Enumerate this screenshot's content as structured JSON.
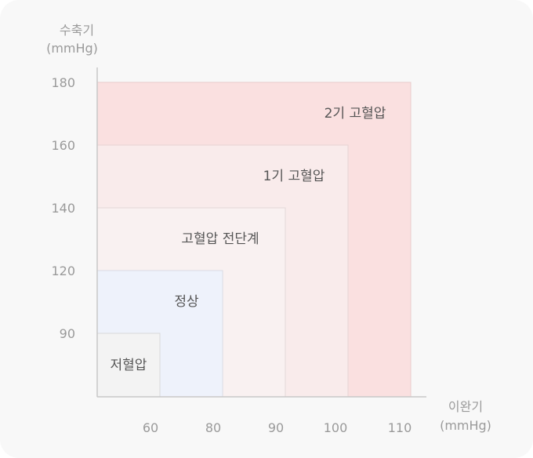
{
  "chart_data": {
    "type": "nested-rectangles",
    "ylabel": "수축기",
    "yunit": "(mmHg)",
    "xlabel": "이완기",
    "xunit": "(mmHg)",
    "y_ticks": [
      "180",
      "160",
      "140",
      "120",
      "90"
    ],
    "x_ticks": [
      "60",
      "80",
      "90",
      "100",
      "110"
    ],
    "zones": [
      {
        "label": "2기 고혈압",
        "systolic": "180",
        "diastolic": "110",
        "color": "#fae0e0"
      },
      {
        "label": "1기 고혈압",
        "systolic": "160",
        "diastolic": "100",
        "color": "#f9ebeb"
      },
      {
        "label": "고혈압 전단계",
        "systolic": "140",
        "diastolic": "90",
        "color": "#f9f1f1"
      },
      {
        "label": "정상",
        "systolic": "120",
        "diastolic": "80",
        "color": "#eef2fb"
      },
      {
        "label": "저혈압",
        "systolic": "90",
        "diastolic": "60",
        "color": "#f3f3f3"
      }
    ]
  }
}
